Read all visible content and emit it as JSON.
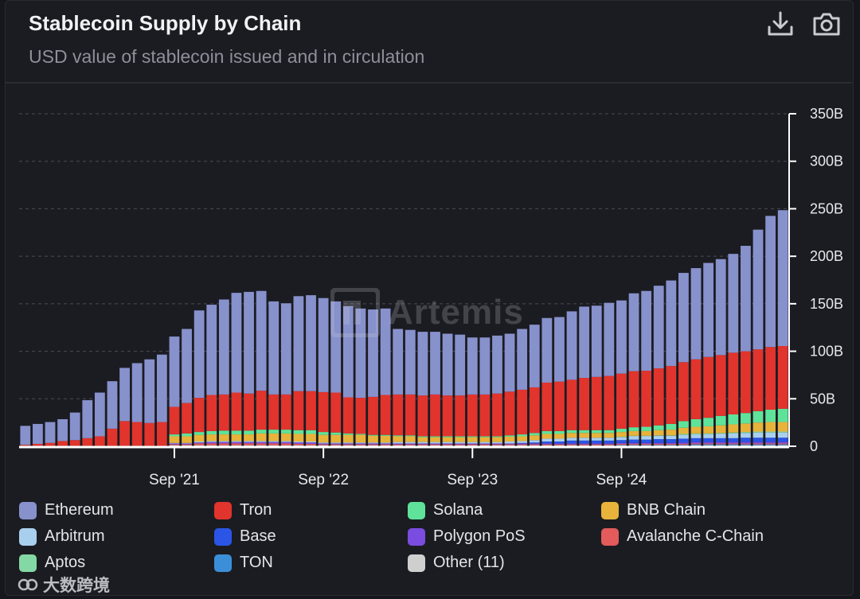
{
  "header": {
    "title": "Stablecoin Supply by Chain",
    "subtitle": "USD value of stablecoin issued and in circulation",
    "download_icon": "download-icon",
    "camera_icon": "camera-icon"
  },
  "watermark": {
    "text": "Artemis"
  },
  "brand": {
    "text": "大数跨境"
  },
  "colors": {
    "background": "#1b1c21",
    "grid": "#4a4c55",
    "axis": "#ffffff"
  },
  "chart_data": {
    "type": "bar",
    "stacked": true,
    "title": "Stablecoin Supply by Chain",
    "subtitle": "USD value of stablecoin issued and in circulation",
    "xlabel": "",
    "ylabel": "",
    "ylim": [
      0,
      350
    ],
    "y_ticks": [
      0,
      50,
      100,
      150,
      200,
      250,
      300,
      350
    ],
    "y_tick_labels": [
      "0",
      "50B",
      "100B",
      "150B",
      "200B",
      "250B",
      "300B",
      "350B"
    ],
    "y_axis_position": "right",
    "grid": true,
    "legend_position": "bottom",
    "x_tick_labels": [
      {
        "label": "Sep '21",
        "index": 12
      },
      {
        "label": "Sep '22",
        "index": 24
      },
      {
        "label": "Sep '23",
        "index": 36
      },
      {
        "label": "Sep '24",
        "index": 48
      }
    ],
    "categories": [
      "Sep 2020",
      "Oct 2020",
      "Nov 2020",
      "Dec 2020",
      "Jan 2021",
      "Feb 2021",
      "Mar 2021",
      "Apr 2021",
      "May 2021",
      "Jun 2021",
      "Jul 2021",
      "Aug 2021",
      "Sep 2021",
      "Oct 2021",
      "Nov 2021",
      "Dec 2021",
      "Jan 2022",
      "Feb 2022",
      "Mar 2022",
      "Apr 2022",
      "May 2022",
      "Jun 2022",
      "Jul 2022",
      "Aug 2022",
      "Sep 2022",
      "Oct 2022",
      "Nov 2022",
      "Dec 2022",
      "Jan 2023",
      "Feb 2023",
      "Mar 2023",
      "Apr 2023",
      "May 2023",
      "Jun 2023",
      "Jul 2023",
      "Aug 2023",
      "Sep 2023",
      "Oct 2023",
      "Nov 2023",
      "Dec 2023",
      "Jan 2024",
      "Feb 2024",
      "Mar 2024",
      "Apr 2024",
      "May 2024",
      "Jun 2024",
      "Jul 2024",
      "Aug 2024",
      "Sep 2024",
      "Oct 2024",
      "Nov 2024",
      "Dec 2024",
      "Jan 2025",
      "Feb 2025",
      "Mar 2025",
      "Apr 2025",
      "May 2025",
      "Jun 2025",
      "Jul 2025",
      "Aug 2025",
      "Sep 2025",
      "Oct 2025"
    ],
    "series": [
      {
        "name": "Other (11)",
        "color": "#cfcfcf",
        "values": [
          0.5,
          0.5,
          0.5,
          0.5,
          0.5,
          0.5,
          0.5,
          0.5,
          0.5,
          0.5,
          0.5,
          0.5,
          1,
          1,
          1,
          1,
          1,
          1,
          1,
          1,
          1,
          1,
          1,
          1,
          1,
          1,
          1,
          1,
          1,
          1,
          1,
          1,
          1,
          1,
          1,
          1,
          1,
          1,
          1,
          1,
          1,
          1,
          1,
          1,
          1,
          1,
          1,
          1,
          1,
          1,
          1,
          1,
          1,
          1,
          1,
          1,
          1,
          1,
          1,
          1,
          1,
          1
        ]
      },
      {
        "name": "TON",
        "color": "#3b8fd9",
        "values": [
          0,
          0,
          0,
          0,
          0,
          0,
          0,
          0,
          0,
          0,
          0,
          0,
          0,
          0,
          0,
          0,
          0,
          0,
          0,
          0,
          0,
          0,
          0,
          0,
          0,
          0,
          0,
          0,
          0,
          0,
          0,
          0,
          0,
          0,
          0,
          0,
          0,
          0,
          0,
          0,
          0,
          0,
          0,
          0,
          0,
          0,
          0,
          0,
          0.5,
          0.5,
          0.5,
          0.5,
          0.5,
          0.5,
          1,
          1,
          1,
          1,
          1,
          1,
          1,
          1
        ]
      },
      {
        "name": "Avalanche C-Chain",
        "color": "#e35b5b",
        "values": [
          0,
          0,
          0,
          0,
          0,
          0,
          0,
          0,
          0,
          0,
          0,
          0,
          1,
          1,
          2,
          2,
          2,
          2,
          2,
          2,
          2,
          2,
          1.5,
          1.5,
          1,
          1,
          1,
          1,
          1,
          1,
          1,
          1,
          1,
          1,
          1,
          1,
          1,
          1,
          1,
          1,
          1,
          1,
          1,
          1,
          1,
          1,
          1,
          1,
          1,
          1,
          1,
          1,
          1,
          1,
          1,
          1,
          1,
          1,
          1,
          1,
          1,
          1
        ]
      },
      {
        "name": "Polygon PoS",
        "color": "#7b4ce0",
        "values": [
          0,
          0,
          0,
          0,
          0,
          0,
          0,
          0,
          0,
          0,
          0,
          0,
          1,
          1,
          1,
          1.5,
          1.5,
          1.5,
          1.5,
          1.5,
          1.5,
          1.5,
          1.5,
          1.5,
          1,
          1,
          1,
          1,
          1,
          1,
          1,
          1,
          1,
          1,
          1,
          1,
          1,
          1,
          1,
          1,
          1,
          1,
          1,
          1,
          1,
          1,
          1,
          1,
          1,
          1,
          1,
          1,
          1,
          1.5,
          1.5,
          1.5,
          1.5,
          1.5,
          1.5,
          1.5,
          1.5,
          1.5
        ]
      },
      {
        "name": "Base",
        "color": "#2a55e6",
        "values": [
          0,
          0,
          0,
          0,
          0,
          0,
          0,
          0,
          0,
          0,
          0,
          0,
          0,
          0,
          0,
          0,
          0,
          0,
          0,
          0,
          0,
          0,
          0,
          0,
          0,
          0,
          0,
          0,
          0,
          0,
          0,
          0,
          0,
          0,
          0,
          0,
          0,
          0,
          0,
          0,
          0.5,
          1,
          2,
          2,
          3,
          3,
          3,
          3,
          3,
          3.5,
          3.5,
          4,
          4,
          4,
          4,
          4,
          4,
          4,
          4.5,
          4.5,
          4.5,
          4.5
        ]
      },
      {
        "name": "Arbitrum",
        "color": "#a9cfee",
        "values": [
          0,
          0,
          0,
          0,
          0,
          0,
          0,
          0,
          0,
          0,
          0,
          0,
          0.5,
          0.5,
          1,
          1,
          1,
          1,
          1,
          1,
          1,
          1,
          1,
          1,
          1,
          1,
          1,
          1,
          1,
          1,
          1.5,
          1.5,
          1.5,
          1.5,
          1.5,
          1.5,
          1.5,
          1.5,
          1.5,
          2,
          2,
          2.5,
          3,
          3,
          3,
          3,
          3,
          3,
          3,
          3.5,
          3.5,
          3.5,
          3.5,
          4,
          4,
          4,
          4.5,
          5,
          5,
          5.5,
          5.5,
          5.5
        ]
      },
      {
        "name": "Aptos",
        "color": "#84d8a4",
        "values": [
          0,
          0,
          0,
          0,
          0,
          0,
          0,
          0,
          0,
          0,
          0,
          0,
          0,
          0,
          0,
          0,
          0,
          0,
          0,
          0,
          0,
          0,
          0,
          0,
          0,
          0,
          0,
          0,
          0,
          0,
          0,
          0,
          0,
          0,
          0,
          0,
          0,
          0,
          0,
          0,
          0,
          0,
          0,
          0,
          0,
          0,
          0,
          0,
          0.5,
          0.5,
          0.5,
          0.5,
          0.5,
          1,
          1,
          1,
          1,
          1,
          1,
          1,
          1,
          1
        ]
      },
      {
        "name": "BNB Chain",
        "color": "#e8b33b",
        "values": [
          0,
          0,
          0,
          0,
          0,
          0,
          0,
          0,
          0,
          0,
          0,
          0,
          7,
          7,
          7,
          7,
          7,
          7,
          7,
          8,
          8,
          8,
          8,
          8,
          8,
          8,
          8,
          8,
          7,
          7,
          6,
          6,
          5,
          5,
          5,
          5,
          5,
          5,
          5,
          5,
          5,
          5,
          5,
          5,
          5,
          5,
          5,
          5,
          5,
          5,
          5,
          5.5,
          6,
          6.5,
          7,
          7.5,
          8,
          8.5,
          9,
          9.5,
          10,
          10
        ]
      },
      {
        "name": "Solana",
        "color": "#5fe39a",
        "values": [
          0,
          0,
          0,
          0,
          0,
          0,
          0,
          0,
          0,
          0,
          0,
          0,
          2,
          3,
          3,
          3.5,
          4,
          4,
          4,
          4,
          4,
          4,
          4,
          4,
          3,
          2.5,
          1.5,
          1,
          1,
          1,
          1,
          1,
          1,
          1,
          1,
          1,
          1,
          1,
          1,
          1.5,
          2,
          2.5,
          3,
          3,
          3,
          3,
          3,
          3,
          3.5,
          4,
          4.5,
          5,
          6,
          7,
          8,
          9,
          10,
          10.5,
          11,
          12,
          13,
          14
        ]
      },
      {
        "name": "Tron",
        "color": "#e0342d",
        "values": [
          1,
          2,
          3,
          5,
          6,
          8,
          10,
          18,
          26,
          25,
          24,
          25,
          29,
          32,
          36,
          38,
          38,
          40,
          39,
          41,
          37,
          37,
          41,
          41,
          42,
          42,
          38,
          38,
          40,
          42,
          43,
          43,
          43,
          44,
          43,
          43,
          44,
          44,
          45,
          46,
          47,
          48,
          51,
          52,
          53,
          55,
          56,
          57,
          58,
          59,
          59,
          60,
          61,
          62,
          63,
          64,
          64,
          65,
          65,
          65,
          66,
          66
        ]
      },
      {
        "name": "Ethereum",
        "color": "#8791cc",
        "values": [
          20,
          21,
          22,
          23,
          29,
          40,
          46,
          50,
          56,
          62,
          67,
          71,
          74,
          78,
          92,
          95,
          100,
          105,
          107,
          105,
          98,
          96,
          100,
          101,
          99,
          96,
          96,
          94,
          92,
          91,
          69,
          68,
          67,
          66,
          65,
          64,
          60,
          60,
          61,
          61,
          64,
          66,
          68,
          68,
          72,
          75,
          75,
          77,
          77,
          82,
          84,
          87,
          90,
          94,
          96,
          99,
          101,
          104,
          111,
          126,
          138,
          143
        ]
      }
    ]
  },
  "legend": [
    {
      "label": "Ethereum",
      "color": "#8791cc"
    },
    {
      "label": "Tron",
      "color": "#e0342d"
    },
    {
      "label": "Solana",
      "color": "#5fe39a"
    },
    {
      "label": "BNB Chain",
      "color": "#e8b33b"
    },
    {
      "label": "Arbitrum",
      "color": "#a9cfee"
    },
    {
      "label": "Base",
      "color": "#2a55e6"
    },
    {
      "label": "Polygon PoS",
      "color": "#7b4ce0"
    },
    {
      "label": "Avalanche C-Chain",
      "color": "#e35b5b"
    },
    {
      "label": "Aptos",
      "color": "#84d8a4"
    },
    {
      "label": "TON",
      "color": "#3b8fd9"
    },
    {
      "label": "Other (11)",
      "color": "#cfcfcf"
    }
  ]
}
